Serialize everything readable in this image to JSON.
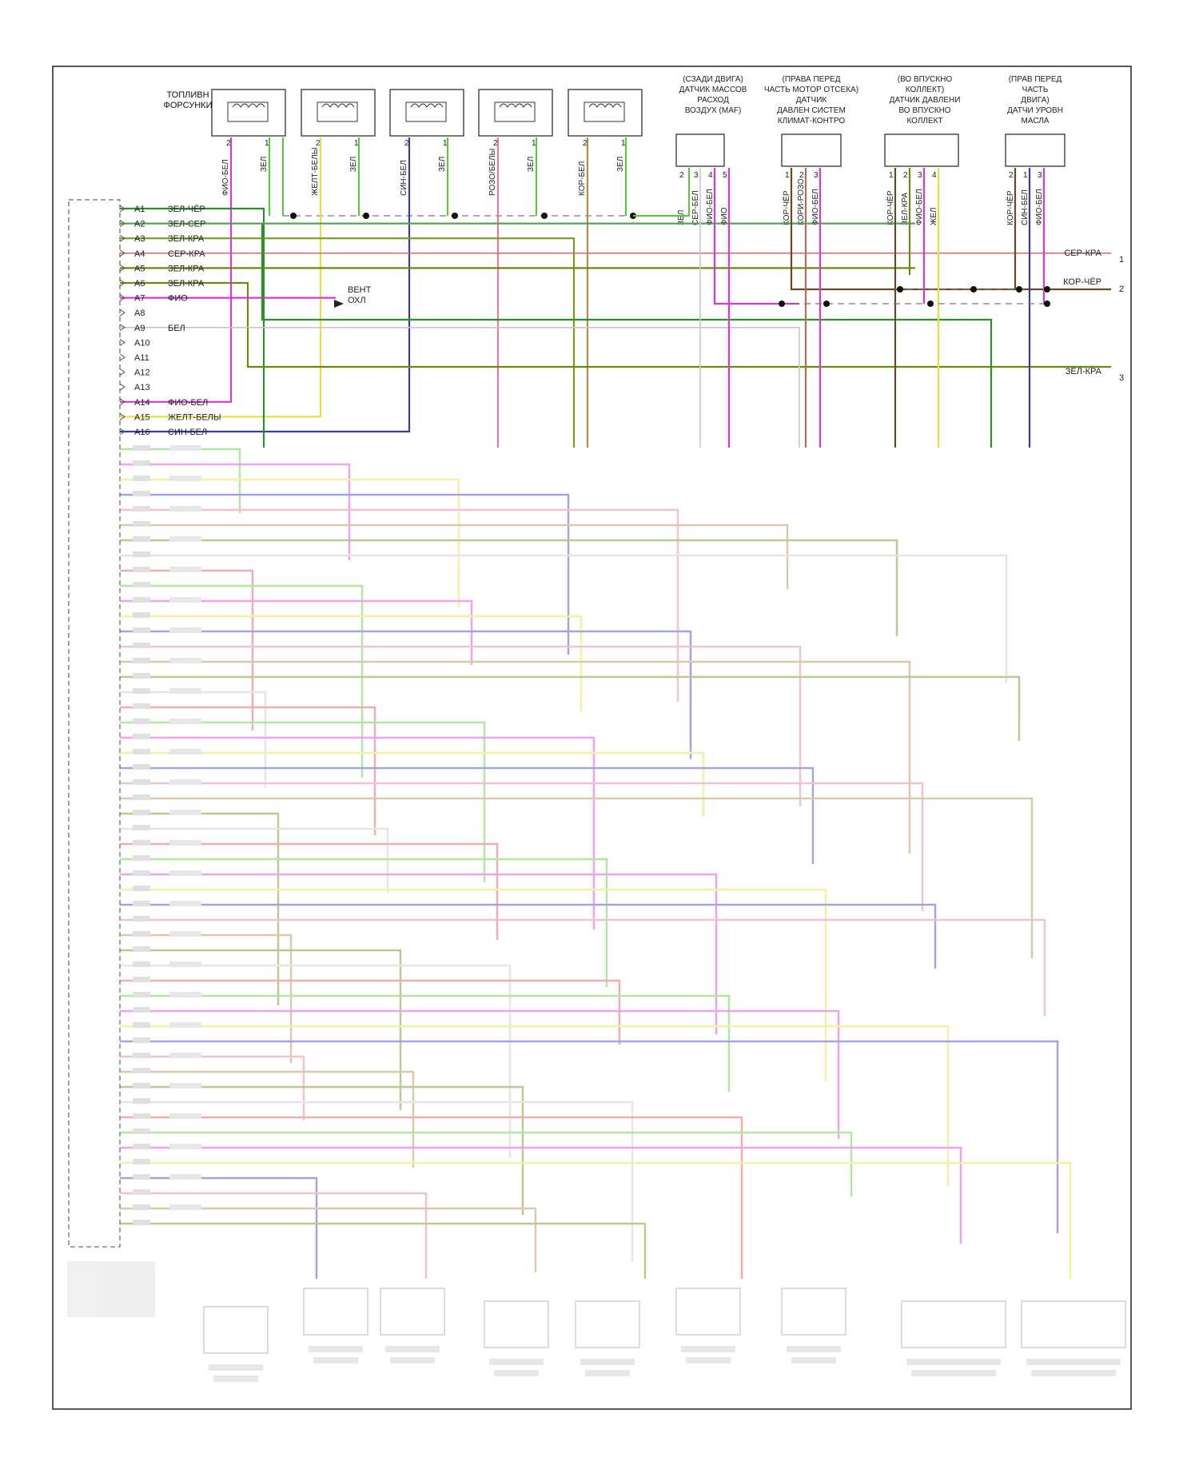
{
  "connector_label": "",
  "injectors": {
    "title_lines": [
      "ТОПЛИВН",
      "ФОРСУНКИ"
    ],
    "items": [
      {
        "pin2": "ФИО-БЕЛ",
        "pin1": "ЗЕЛ",
        "color2": "#d63ad6"
      },
      {
        "pin2": "ЖЕЛТ-БЕЛЫ",
        "pin1": "ЗЕЛ",
        "color2": "#e8e040"
      },
      {
        "pin2": "СИН-БЕЛ",
        "pin1": "ЗЕЛ",
        "color2": "#3a3ab0"
      },
      {
        "pin2": "РОЗО/БЕЛЫ",
        "pin1": "ЗЕЛ",
        "color2": "#e07aa6"
      },
      {
        "pin2": "КОР-БЕЛ",
        "pin1": "ЗЕЛ",
        "color2": "#b08a50"
      }
    ]
  },
  "sensors": [
    {
      "lines": [
        "(СЗАДИ ДВИГА)",
        "ДАТЧИК МАССОВ",
        "РАСХОД",
        "ВОЗДУХ (MAF)"
      ],
      "pins": [
        {
          "n": "2",
          "wire": "ЗЕЛ"
        },
        {
          "n": "3",
          "wire": "СЕР-БЕЛ"
        },
        {
          "n": "4",
          "wire": "ФИО-БЕЛ"
        },
        {
          "n": "5",
          "wire": "ФИО"
        }
      ]
    },
    {
      "lines": [
        "(ПРАВА ПЕРЕД",
        "ЧАСТЬ МОТОР ОТСЕКА)",
        "ДАТЧИК",
        "ДАВЛЕН СИСТЕМ",
        "КЛИМАТ-КОНТРО"
      ],
      "pins": [
        {
          "n": "1",
          "wire": "КОР-ЧЁР"
        },
        {
          "n": "2",
          "wire": "КОРИ-РОЗО"
        },
        {
          "n": "3",
          "wire": "ФИО-БЕЛ"
        }
      ]
    },
    {
      "lines": [
        "(ВО ВПУСКНО",
        "КОЛЛЕКТ)",
        "ДАТЧИК ДАВЛЕНИ",
        "ВО ВПУСКНО",
        "КОЛЛЕКТ"
      ],
      "pins": [
        {
          "n": "1",
          "wire": "КОР-ЧЁР"
        },
        {
          "n": "2",
          "wire": "ЗЕЛ-КРА"
        },
        {
          "n": "3",
          "wire": "ФИО-БЕЛ"
        },
        {
          "n": "4",
          "wire": "ЖЕЛ"
        }
      ]
    },
    {
      "lines": [
        "(ПРАВ ПЕРЕД",
        "ЧАСТЬ",
        "ДВИГА)",
        "ДАТЧИ УРОВН",
        "МАСЛА"
      ],
      "pins": [
        {
          "n": "2",
          "wire": "КОР-ЧЁР"
        },
        {
          "n": "1",
          "wire": "СИН-БЕЛ"
        },
        {
          "n": "3",
          "wire": "ФИО-БЕЛ"
        }
      ]
    }
  ],
  "ecm_pins": [
    {
      "pin": "A1",
      "wire": "ЗЕЛ-ЧЁР",
      "color": "#2f8f2f"
    },
    {
      "pin": "A2",
      "wire": "ЗЕЛ-СЕР",
      "color": "#5aa05a"
    },
    {
      "pin": "A3",
      "wire": "ЗЕЛ-КРА",
      "color": "#7a9a20"
    },
    {
      "pin": "A4",
      "wire": "СЕР-КРА",
      "color": "#c07070"
    },
    {
      "pin": "A5",
      "wire": "ЗЕЛ-КРА",
      "color": "#6a8a10"
    },
    {
      "pin": "A6",
      "wire": "ЗЕЛ-КРА",
      "color": "#6a8a10"
    },
    {
      "pin": "A7",
      "wire": "ФИО",
      "color": "#d020d0"
    },
    {
      "pin": "A8",
      "wire": "",
      "color": ""
    },
    {
      "pin": "A9",
      "wire": "БЕЛ",
      "color": "#c8c8c8"
    },
    {
      "pin": "A10",
      "wire": "",
      "color": ""
    },
    {
      "pin": "A11",
      "wire": "",
      "color": ""
    },
    {
      "pin": "A12",
      "wire": "",
      "color": ""
    },
    {
      "pin": "A13",
      "wire": "",
      "color": ""
    },
    {
      "pin": "A14",
      "wire": "ФИО-БЕЛ",
      "color": "#d63ad6"
    },
    {
      "pin": "A15",
      "wire": "ЖЕЛТ-БЕЛЫ",
      "color": "#e8e040"
    },
    {
      "pin": "A16",
      "wire": "СИН-БЕЛ",
      "color": "#3a3ab0"
    }
  ],
  "fan": {
    "lines": [
      "ВЕНТ",
      "ОХЛ"
    ]
  },
  "right_refs": [
    {
      "wire": "СЕР-КРА",
      "num": "1"
    },
    {
      "wire": "КОР-ЧЁР",
      "num": "2"
    },
    {
      "wire": "ЗЕЛ-КРА",
      "num": "3"
    }
  ],
  "blurred_note": "",
  "colors": {
    "green": "#55cc33",
    "violet": "#d63ad6",
    "yellow": "#e8e040",
    "blue": "#3a3ab0",
    "pink": "#e07aa6",
    "brown": "#b08a50",
    "olive": "#6a8a10",
    "grey": "#c8c8c8",
    "red": "#e05050"
  }
}
